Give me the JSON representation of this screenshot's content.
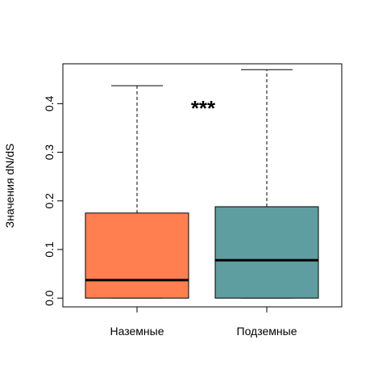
{
  "chart_data": {
    "type": "box",
    "title": "",
    "xlabel": "",
    "ylabel": "Значения dN/dS",
    "ylim": [
      -0.018,
      0.482
    ],
    "yticks": [
      "0.0",
      "0.1",
      "0.2",
      "0.3",
      "0.4"
    ],
    "ytick_values": [
      0.0,
      0.1,
      0.2,
      0.3,
      0.4
    ],
    "categories": [
      "Наземные",
      "Подземные"
    ],
    "boxes": [
      {
        "category": "Наземные",
        "min": 0.0,
        "q1": 0.0,
        "median": 0.037,
        "q3": 0.175,
        "max": 0.437,
        "color": "#FF7F50"
      },
      {
        "category": "Подземные",
        "min": 0.0,
        "q1": 0.0,
        "median": 0.078,
        "q3": 0.188,
        "max": 0.47,
        "color": "#5F9EA0"
      }
    ],
    "annotation": "***",
    "grid": false,
    "legend": "none"
  }
}
